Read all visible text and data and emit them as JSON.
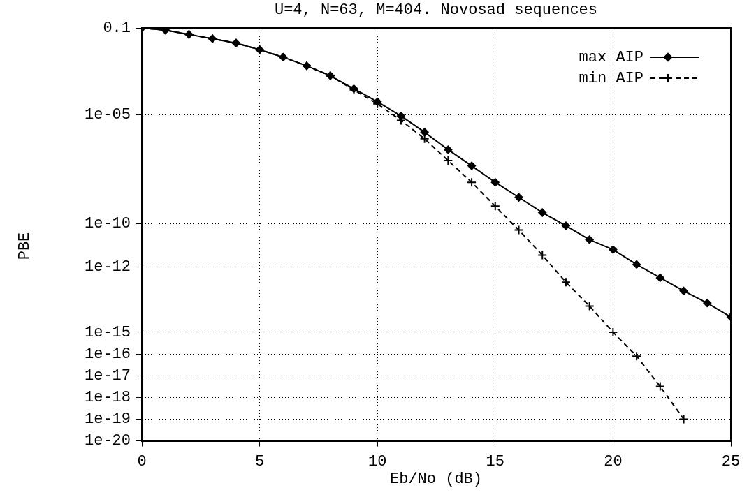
{
  "chart_data": {
    "type": "line",
    "title": "U=4, N=63, M=404. Novosad sequences",
    "xlabel": "Eb/No (dB)",
    "ylabel": "PBE",
    "x": [
      0,
      1,
      2,
      3,
      4,
      5,
      6,
      7,
      8,
      9,
      10,
      11,
      12,
      13,
      14,
      15,
      16,
      17,
      18,
      19,
      20,
      21,
      22,
      23,
      24,
      25
    ],
    "series": [
      {
        "name": "max AIP",
        "color": "#000000",
        "marker": "diamond",
        "line_style": "solid",
        "values": [
          0.1,
          0.079,
          0.05,
          0.032,
          0.02,
          0.01,
          0.0045,
          0.0018,
          0.00063,
          0.00016,
          4e-05,
          8.9e-06,
          1.6e-06,
          2.5e-07,
          4.5e-08,
          7.9e-09,
          1.6e-09,
          3.2e-10,
          7.9e-11,
          1.8e-11,
          6.3e-12,
          1.3e-12,
          3.2e-13,
          7.9e-14,
          2.2e-14,
          5e-15
        ]
      },
      {
        "name": "min AIP",
        "color": "#000000",
        "marker": "cross",
        "line_style": "dashed",
        "values": [
          0.1,
          0.079,
          0.05,
          0.032,
          0.02,
          0.01,
          0.0045,
          0.0018,
          0.00063,
          0.00014,
          3.2e-05,
          5.6e-06,
          7.9e-07,
          7.9e-08,
          7.9e-09,
          6.3e-10,
          5e-11,
          3.5e-12,
          2e-13,
          1.6e-14,
          1e-15,
          7.9e-17,
          3.2e-18,
          1e-19,
          null,
          null
        ]
      }
    ],
    "log": "y",
    "xlim": [
      0,
      25
    ],
    "xticks": [
      0,
      5,
      10,
      15,
      20,
      25
    ],
    "ylim": [
      1e-20,
      0.1
    ],
    "yticks": [
      {
        "value": 0.1,
        "label": "0.1"
      },
      {
        "value": 1e-05,
        "label": "1e-05"
      },
      {
        "value": 1e-10,
        "label": "1e-10"
      },
      {
        "value": 1e-12,
        "label": "1e-12"
      },
      {
        "value": 1e-15,
        "label": "1e-15"
      },
      {
        "value": 1e-16,
        "label": "1e-16"
      },
      {
        "value": 1e-17,
        "label": "1e-17"
      },
      {
        "value": 1e-18,
        "label": "1e-18"
      },
      {
        "value": 1e-19,
        "label": "1e-19"
      },
      {
        "value": 1e-20,
        "label": "1e-20"
      }
    ],
    "grid": true,
    "legend": "top right"
  }
}
